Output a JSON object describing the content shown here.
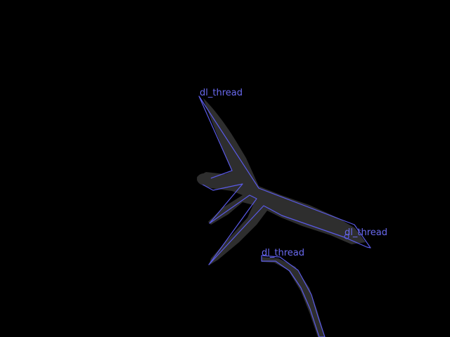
{
  "overlay": {
    "labels": [
      "dl_thread",
      "dl_thread",
      "dl_thread"
    ]
  },
  "colors": {
    "background": "#000000",
    "shape_fill": "#2e2e2e",
    "outline": "#5a5ae6",
    "label": "#6a6af0"
  }
}
